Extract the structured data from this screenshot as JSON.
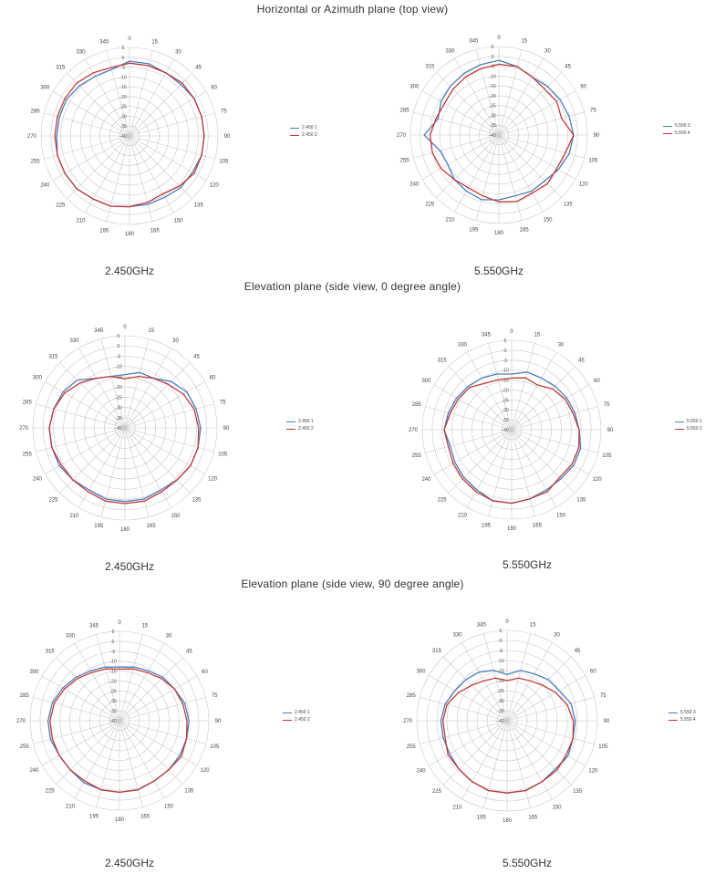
{
  "section_titles": [
    "Horizontal or Azimuth plane (top view)",
    "Elevation plane (side view, 0 degree angle)",
    "Elevation plane (side view, 90 degree angle)"
  ],
  "freq_labels": [
    "2.450GHz",
    "5.550GHz",
    "2.450GHz",
    "5.550GHz",
    "2.450GHz",
    "5.550GHz"
  ],
  "colors": {
    "blue": "#4a7dc0",
    "red": "#c03a38",
    "grid": "#c8c8c8"
  },
  "chart_data": [
    {
      "type": "polar",
      "title": "",
      "freq": "2.450GHz",
      "angle_labels": [
        "0",
        "15",
        "30",
        "45",
        "60",
        "75",
        "90",
        "105",
        "120",
        "135",
        "150",
        "165",
        "180",
        "195",
        "210",
        "225",
        "240",
        "255",
        "270",
        "285",
        "300",
        "315",
        "330",
        "345"
      ],
      "r_ticks": [
        "5",
        "0",
        "-5",
        "-10",
        "-15",
        "-20",
        "-25",
        "-30",
        "-35",
        "-40"
      ],
      "rlim": [
        -40,
        5
      ],
      "series": [
        {
          "name": "2.450 1",
          "color": "blue",
          "values": [
            -2,
            -2,
            -3,
            -3,
            -2,
            -2,
            -2,
            -2,
            -3,
            -3,
            -4,
            -4,
            -4,
            -3,
            -3,
            -2,
            -2,
            -2,
            -3,
            -3,
            -3,
            -4,
            -5,
            -5
          ]
        },
        {
          "name": "2.450 2",
          "color": "red",
          "values": [
            -3,
            -3,
            -3,
            -2,
            -2,
            -2,
            -2,
            -2,
            -2,
            -4,
            -6,
            -5,
            -4,
            -3,
            -3,
            -2,
            -2,
            -2,
            -2,
            -2,
            -2,
            -2,
            -3,
            -4
          ]
        }
      ]
    },
    {
      "type": "polar",
      "title": "",
      "freq": "5.550GHz",
      "angle_labels": [
        "0",
        "15",
        "30",
        "45",
        "60",
        "75",
        "90",
        "105",
        "120",
        "135",
        "150",
        "165",
        "180",
        "195",
        "210",
        "225",
        "240",
        "255",
        "270",
        "285",
        "300",
        "315",
        "330",
        "345"
      ],
      "r_ticks": [
        "5",
        "0",
        "-5",
        "-10",
        "-15",
        "-20",
        "-25",
        "-30",
        "-35",
        "-40"
      ],
      "rlim": [
        -40,
        5
      ],
      "series": [
        {
          "name": "5.550 3",
          "color": "blue",
          "values": [
            -2,
            -4,
            -6,
            -5,
            -4,
            -3,
            -2,
            -3,
            -5,
            -7,
            -7,
            -8,
            -7,
            -6,
            -7,
            -8,
            -10,
            -9,
            -2,
            -8,
            -6,
            -5,
            -4,
            -3
          ]
        },
        {
          "name": "5.550 4",
          "color": "red",
          "values": [
            -4,
            -4,
            -6,
            -7,
            -6,
            -7,
            -2,
            -5,
            -6,
            -5,
            -6,
            -5,
            -6,
            -8,
            -9,
            -8,
            -6,
            -5,
            -5,
            -7,
            -8,
            -7,
            -6,
            -5
          ]
        }
      ]
    },
    {
      "type": "polar",
      "title": "",
      "freq": "2.450GHz",
      "angle_labels": [
        "0",
        "15",
        "30",
        "45",
        "60",
        "75",
        "90",
        "105",
        "120",
        "135",
        "150",
        "165",
        "180",
        "195",
        "210",
        "225",
        "240",
        "255",
        "270",
        "285",
        "300",
        "315",
        "330",
        "345"
      ],
      "r_ticks": [
        "5",
        "0",
        "-5",
        "-10",
        "-15",
        "-20",
        "-25",
        "-30",
        "-35",
        "-40"
      ],
      "rlim": [
        -40,
        5
      ],
      "series": [
        {
          "name": "2.450 1",
          "color": "blue",
          "values": [
            -14,
            -12,
            -12,
            -8,
            -5,
            -4,
            -3,
            -3,
            -3,
            -4,
            -5,
            -4,
            -4,
            -4,
            -5,
            -4,
            -3,
            -3,
            -3,
            -4,
            -5,
            -7,
            -12,
            -14
          ]
        },
        {
          "name": "2.450 2",
          "color": "red",
          "values": [
            -16,
            -14,
            -12,
            -10,
            -7,
            -5,
            -4,
            -3,
            -3,
            -4,
            -4,
            -3,
            -3,
            -3,
            -4,
            -4,
            -4,
            -3,
            -3,
            -4,
            -6,
            -9,
            -12,
            -14
          ]
        }
      ]
    },
    {
      "type": "polar",
      "title": "",
      "freq": "5.550GHz",
      "angle_labels": [
        "0",
        "15",
        "30",
        "45",
        "60",
        "75",
        "90",
        "105",
        "120",
        "135",
        "150",
        "165",
        "180",
        "195",
        "210",
        "225",
        "240",
        "255",
        "270",
        "285",
        "300",
        "315",
        "330",
        "345"
      ],
      "r_ticks": [
        "5",
        "0",
        "-5",
        "-10",
        "-15",
        "-20",
        "-25",
        "-30",
        "-35",
        "-40"
      ],
      "rlim": [
        -40,
        5
      ],
      "series": [
        {
          "name": "5.550 1",
          "color": "blue",
          "values": [
            -12,
            -10,
            -10,
            -9,
            -8,
            -7,
            -6,
            -4,
            -4,
            -5,
            -5,
            -4,
            -3,
            -3,
            -5,
            -6,
            -7,
            -8,
            -6,
            -7,
            -8,
            -9,
            -10,
            -11
          ]
        },
        {
          "name": "5.550 2",
          "color": "red",
          "values": [
            -14,
            -13,
            -14,
            -11,
            -9,
            -8,
            -6,
            -5,
            -5,
            -6,
            -4,
            -4,
            -3,
            -3,
            -4,
            -5,
            -6,
            -7,
            -6,
            -8,
            -9,
            -10,
            -13,
            -14
          ]
        }
      ]
    },
    {
      "type": "polar",
      "title": "",
      "freq": "2.450GHz",
      "angle_labels": [
        "0",
        "15",
        "30",
        "45",
        "60",
        "75",
        "90",
        "105",
        "120",
        "135",
        "150",
        "165",
        "180",
        "195",
        "210",
        "225",
        "240",
        "255",
        "270",
        "285",
        "300",
        "315",
        "330",
        "345"
      ],
      "r_ticks": [
        "5",
        "0",
        "-5",
        "-10",
        "-15",
        "-20",
        "-25",
        "-30",
        "-35",
        "-40"
      ],
      "rlim": [
        -40,
        5
      ],
      "series": [
        {
          "name": "2.450 1",
          "color": "blue",
          "values": [
            -13,
            -12,
            -11,
            -9,
            -8,
            -6,
            -5,
            -5,
            -5,
            -5,
            -5,
            -4,
            -4,
            -4,
            -4,
            -5,
            -5,
            -4,
            -4,
            -5,
            -7,
            -9,
            -11,
            -12
          ]
        },
        {
          "name": "2.450 2",
          "color": "red",
          "values": [
            -14,
            -13,
            -12,
            -10,
            -8,
            -7,
            -6,
            -5,
            -4,
            -5,
            -5,
            -4,
            -4,
            -4,
            -5,
            -5,
            -5,
            -5,
            -5,
            -6,
            -8,
            -10,
            -12,
            -13
          ]
        }
      ]
    },
    {
      "type": "polar",
      "title": "",
      "freq": "5.550GHz",
      "angle_labels": [
        "0",
        "15",
        "30",
        "45",
        "60",
        "75",
        "90",
        "105",
        "120",
        "135",
        "150",
        "165",
        "180",
        "195",
        "210",
        "225",
        "240",
        "255",
        "270",
        "285",
        "300",
        "315",
        "330",
        "345"
      ],
      "r_ticks": [
        "5",
        "0",
        "-5",
        "-10",
        "-15",
        "-20",
        "-25",
        "-30",
        "-35",
        "-40"
      ],
      "rlim": [
        -40,
        5
      ],
      "series": [
        {
          "name": "5.550 3",
          "color": "blue",
          "values": [
            -17,
            -14,
            -13,
            -11,
            -10,
            -7,
            -6,
            -6,
            -5,
            -6,
            -5,
            -4,
            -4,
            -4,
            -5,
            -6,
            -7,
            -7,
            -7,
            -8,
            -10,
            -11,
            -12,
            -14
          ]
        },
        {
          "name": "5.550 4",
          "color": "red",
          "values": [
            -20,
            -18,
            -17,
            -15,
            -12,
            -9,
            -7,
            -6,
            -6,
            -5,
            -5,
            -4,
            -4,
            -4,
            -5,
            -6,
            -6,
            -8,
            -8,
            -9,
            -12,
            -15,
            -17,
            -18
          ]
        }
      ]
    }
  ]
}
